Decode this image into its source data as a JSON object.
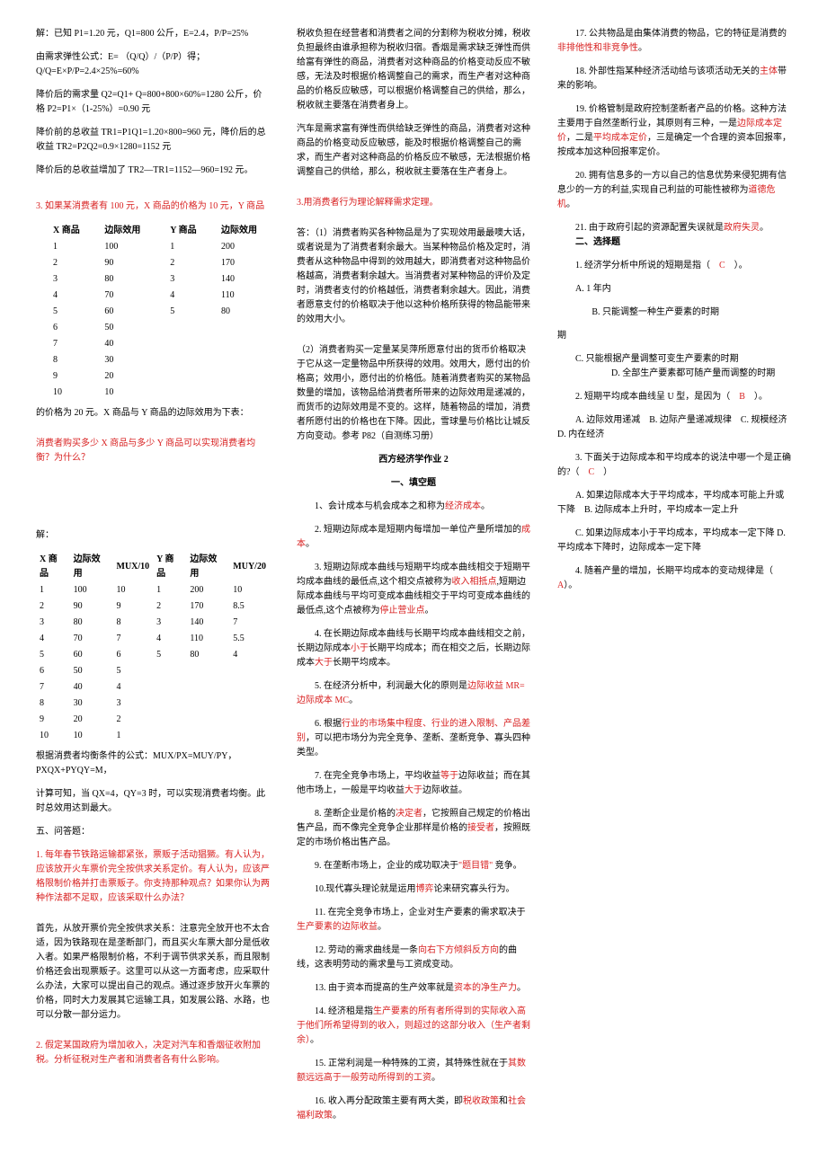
{
  "col1": {
    "calc": [
      "解：已知 P1=1.20 元，Q1=800 公斤，E=2.4，P/P=25%",
      "由需求弹性公式：E= （Q/Q）/（P/P）得；Q/Q=E×P/P=2.4×25%=60%",
      "降价后的需求量 Q2=Q1+ Q=800+800×60%=1280 公斤，价格 P2=P1×（1-25%）=0.90 元",
      "降价前的总收益 TR1=P1Q1=1.20×800=960 元，降价后的总收益 TR2=P2Q2=0.9×1280=1152 元",
      "降价后的总收益增加了 TR2—TR1=1152—960=192 元。"
    ],
    "q3": "3. 如果某消费者有 100 元，X 商品的价格为 10 元，Y 商品",
    "table1_headers": [
      "X 商品",
      "边际效用",
      "Y 商品",
      "边际效用"
    ],
    "table1_rows": [
      [
        "1",
        "100",
        "1",
        "200"
      ],
      [
        "2",
        "90",
        "2",
        "170"
      ],
      [
        "3",
        "80",
        "3",
        "140"
      ],
      [
        "4",
        "70",
        "4",
        "110"
      ],
      [
        "5",
        "60",
        "5",
        "80"
      ],
      [
        "6",
        "50",
        "",
        ""
      ],
      [
        "7",
        "40",
        "",
        ""
      ],
      [
        "8",
        "30",
        "",
        ""
      ],
      [
        "9",
        "20",
        "",
        ""
      ],
      [
        "10",
        "10",
        "",
        ""
      ]
    ],
    "t1_note": "的价格为 20 元。X 商品与 Y 商品的边际效用为下表：",
    "q3b": "消费者购买多少 X 商品与多少 Y 商品可以实现消费者均衡？为什么？",
    "solve": "解：",
    "table2_headers": [
      "X 商品",
      "边际效用",
      "MUX/10",
      "Y 商品",
      "边际效用",
      "MUY/20"
    ],
    "table2_rows": [
      [
        "1",
        "100",
        "10",
        "1",
        "200",
        "10"
      ],
      [
        "2",
        "90",
        "9",
        "2",
        "170",
        "8.5"
      ],
      [
        "3",
        "80",
        "8",
        "3",
        "140",
        "7"
      ],
      [
        "4",
        "70",
        "7",
        "4",
        "110",
        "5.5"
      ],
      [
        "5",
        "60",
        "6",
        "5",
        "80",
        "4"
      ],
      [
        "6",
        "50",
        "5",
        "",
        "",
        ""
      ],
      [
        "7",
        "40",
        "4",
        "",
        "",
        ""
      ],
      [
        "8",
        "30",
        "3",
        "",
        "",
        ""
      ],
      [
        "9",
        "20",
        "2",
        "",
        "",
        ""
      ],
      [
        "10",
        "10",
        "1",
        "",
        "",
        ""
      ]
    ],
    "conclusion": [
      "根据消费者均衡条件的公式：MUX/PX=MUY/PY，PXQX+PYQY=M，",
      "计算可知，当 QX=4，QY=3 时，可以实现消费者均衡。此时总效用达到最大。"
    ]
  },
  "col2": {
    "q5_title": "五、问答题：",
    "e1_q": "1. 每年春节铁路运输都紧张，票贩子活动猖獗。有人认为，应该放开火车票价完全按供求关系定价。有人认为，应该严格限制价格并打击票贩子。你支持那种观点？如果你认为两种作法都不足取，应该采取什么办法？",
    "e1_a": "首先，从放开票价完全按供求关系：注意完全放开也不太合适，因为铁路现在是垄断部门，而且买火车票大部分是低收入者。如果严格限制价格，不利于调节供求关系，而且限制价格还会出现票贩子。这里可以从这一方面考虑，应采取什么办法，大家可以提出自己的观点。通过逐步放开火车票的价格，同时大力发展其它运输工具，如发展公路、水路，也可以分散一部分运力。",
    "e2_q": "2. 假定某国政府为增加收入，决定对汽车和香烟征收附加税。分析征税对生产者和消费者各有什么影响。",
    "e2_a1": "税收负担在经营者和消费者之间的分割称为税收分摊，税收负担最终由谁承担称为税收归宿。香烟是需求缺乏弹性而供给富有弹性的商品，消费者对这种商品的价格变动反应不敏感，无法及时根据价格调整自己的需求，而生产者对这种商品的价格反应敏感，可以根据价格调整自己的供给，那么，税收就主要落在消费者身上。",
    "e2_a2": "汽车是需求富有弹性而供给缺乏弹性的商品，消费者对这种商品的价格变动反应敏感，能及时根据价格调整自己的需求，而生产者对这种商品的价格反应不敏感，无法根据价格调整自己的供给，那么，税收就主要落在生产者身上。",
    "e3_q": "3.用消费者行为理论解释需求定理。",
    "e3_a1": "答：（1）消费者购买各种物品是为了实现效用最最噢大话，或者说是为了消费者剩余最大。当某种物品价格及定时，消费者从这种物品中得到的效用越大，即消费者对这种物品价格越高，消费者剩余越大。当消费者对某种物品的评价及定时，消费者支付的价格越低，消费者剩余越大。因此，消费者愿意支付的价格取决于他以这种价格所获得的物品能带来的效用大小。",
    "e3_a2": "（2）消费者购买一定量某吴萍所愿意付出的货币价格取决于它从这一定量物品中所获得的效用。效用大，愿付出的价格高；效用小，愿付出的价格低。随着消费者购买的某物品数量的增加，该物品给消费者所带来的边际效用是递减的，而货币的边际效用是不变的。这样，随着物品的增加，消费者所愿付出的价格也在下降。因此，雪球量与价格比让城反方向变动。参考 P82（自测练习册）",
    "hw2_title": "西方经济学作业 2",
    "fill_title": "一、填空题",
    "fill": [
      {
        "pre": "1、会计成本与机会成本之和称为",
        "red": "经济成本",
        "post": "。"
      },
      {
        "pre": "2. 短期边际成本是短期内每增加一单位产量所增加的",
        "red": "成本",
        "post": "。"
      },
      {
        "pre": "3. 短期边际成本曲线与短期平均成本曲线相交于短期平均成本曲线的最低点,这个相交点被称为",
        "red": "收入相抵点",
        "post": ",短期边际成本曲线与平均可变成本曲线相交于平均可变成本曲线的最低点,这个点被称为",
        "red2": "停止营业点",
        "post2": "。"
      }
    ],
    "fill4_pre": "4. 在长期边际成本曲线与长期平均成本曲线相交之前，长期边际成本",
    "fill4_r1": "小于",
    "fill4_mid": "长期平均成本；而在相交之后，长期边际成本",
    "fill4_r2": "大于",
    "fill4_post": "长期平均成本。",
    "fill5_pre": "5. 在经济分析中，利润最大化的原则是",
    "fill5_r": "边际收益 MR=边际成本 MC",
    "fill5_post": "。",
    "fill6_pre": "6. 根据",
    "fill6_r": "行业的市场集中程度、行业的进入限制、产品差别",
    "fill6_post": "，可以把市场分为完全竞争、垄断、垄断竞争、寡头四种类型。",
    "fill7_pre": "7. 在完全竞争市场上，平均收益",
    "fill7_r1": "等于",
    "fill7_mid": "边际收益；而在其他市场上，一般是平均收益",
    "fill7_r2": "大于",
    "fill7_post": "边际收益。"
  },
  "col3": {
    "fills": [
      {
        "pre": "8. 垄断企业是价格的",
        "r1": "决定者",
        "mid": "，它按照自己规定的价格出售产品，而不像完全竞争企业那样是价格的",
        "r2": "接受者",
        "post": "，按照既定的市场价格出售产品。"
      },
      {
        "pre": "9. 在垄断市场上，企业的成功取决于",
        "r1": "\"题目错\"",
        "post": " 竞争。"
      },
      {
        "pre": "10.现代寡头理论就是运用",
        "r1": "博弈",
        "post": "论来研究寡头行为。"
      },
      {
        "pre": "11. 在完全竞争市场上，企业对生产要素的需求取决于",
        "r1": "生产要素的边际收益",
        "post": "。"
      },
      {
        "pre": "12. 劳动的需求曲线是一条",
        "r1": "向右下方倾斜",
        "post": "的曲线，这表明劳动的需求量与工资成",
        "r2": "反方向",
        "post2": "变动。"
      },
      {
        "pre": "13. 由于资本而提高的生产效率就是",
        "r1": "资本的净生产力",
        "post": "。"
      },
      {
        "pre": "14. 经济租是指",
        "r1": "生产要素的所有者所得到的实际收入高于他们所希望得到的收入，则超过的这部分收入（生产者剩余）",
        "post": "。"
      },
      {
        "pre": "15. 正常利润是一种特殊的工资，其特殊性就在于",
        "r1": "其数额远远高于一般劳动所得到的工资",
        "post": "。"
      },
      {
        "pre": "16. 收入再分配政策主要有两大类，即",
        "r1": "税收政策",
        "mid": "和",
        "r2": "社会福利政策",
        "post": "。"
      },
      {
        "pre": "17. 公共物品是由集体消费的物品，它的特征是消费的",
        "r1": "非排他性和非竞争性",
        "post": "。"
      },
      {
        "pre": "18. 外部性指某种经济活动给与该项活动无关的",
        "r1": "主体",
        "post": "带来的影响。"
      },
      {
        "pre": "19. 价格管制是政府控制垄断者产品的价格。这种方法主要用于自然垄断行业，其原则有三种，一是",
        "r1": "边际成本定价",
        "mid": "，二是",
        "r2": "平均成本定价",
        "post": "，三是确定一个合理的资本回报率，按成本加这种回报率定价。"
      },
      {
        "pre": "20. 拥有信息多的一方以自己的信息优势来侵犯拥有信息少的一方的利益,实现自己利益的可能性被称为",
        "r1": "道德危机",
        "post": "。"
      },
      {
        "pre": "21. 由于政府引起的资源配置失误就是",
        "r1": "政府失灵",
        "post": "。"
      }
    ],
    "choice_title": "二、选择题",
    "c1": {
      "q": "1. 经济学分析中所说的短期是指（",
      "ans": "C",
      "tail": "）。",
      "opts": [
        "A. 1 年内",
        "B. 只能调整一种生产要素的时期",
        "C. 只能根据产量调整可变生产要素的时期",
        "D. 全部生产要素都可随产量而调整的时期"
      ]
    },
    "c2": {
      "q": "2. 短期平均成本曲线呈 U 型，是因为（",
      "ans": "B",
      "tail": "）。",
      "opts": "A. 边际效用递减　B. 边际产量递减规律　C. 规模经济　D. 内在经济"
    },
    "c3": {
      "q": "3. 下面关于边际成本和平均成本的说法中哪一个是正确的?（",
      "ans": "C",
      "tail": "）",
      "opts": [
        "A. 如果边际成本大于平均成本，平均成本可能上升或下降　B. 边际成本上升时，平均成本一定上升",
        "C. 如果边际成本小于平均成本，平均成本一定下降 D. 平均成本下降时，边际成本一定下降"
      ]
    },
    "c4": {
      "q": "4. 随着产量的增加，长期平均成本的变动规律是（",
      "ans": "A",
      "tail": "）。"
    }
  }
}
